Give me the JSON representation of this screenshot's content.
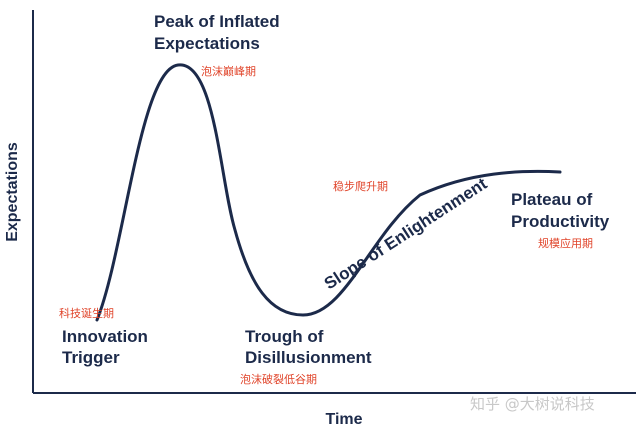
{
  "axes": {
    "x_label": "Time",
    "y_label": "Expectations"
  },
  "phases": {
    "innovation_trigger": {
      "en_line1": "Innovation",
      "en_line2": "Trigger",
      "cn": "科技诞生期"
    },
    "peak": {
      "en_line1": "Peak of Inflated",
      "en_line2": "Expectations",
      "cn": "泡沫巅峰期"
    },
    "trough": {
      "en_line1": "Trough of",
      "en_line2": "Disillusionment",
      "cn": "泡沫破裂低谷期"
    },
    "slope": {
      "en": "Slope of Enlightenment",
      "cn": "稳步爬升期"
    },
    "plateau": {
      "en_line1": "Plateau of",
      "en_line2": "Productivity",
      "cn": "规模应用期"
    }
  },
  "watermark": "知乎 @大树说科技",
  "colors": {
    "curve": "#1c2a4a",
    "text": "#1c2a4a",
    "chinese_label": "#e0442a"
  }
}
